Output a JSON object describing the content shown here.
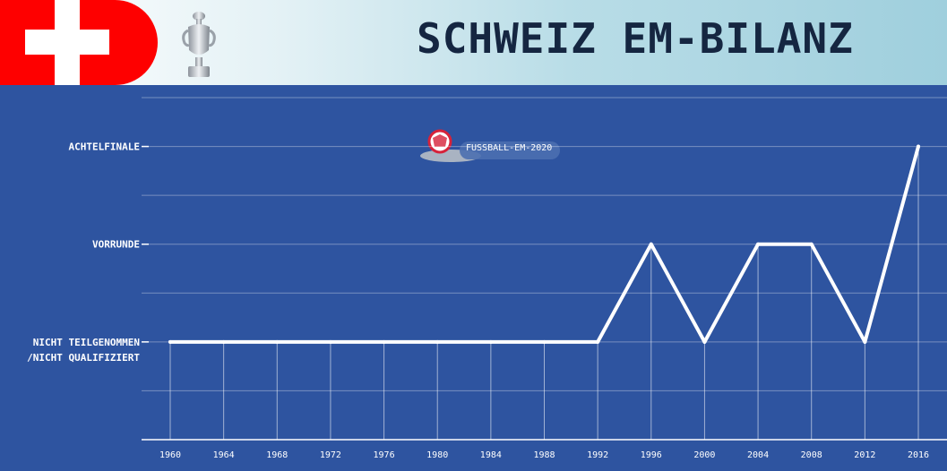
{
  "header": {
    "title": "SCHWEIZ EM-BILANZ",
    "flag_icon": "swiss-flag",
    "trophy_icon": "em-trophy",
    "colors": {
      "flag_red": "#fe0000",
      "title": "#152641",
      "background": "#2e54a0"
    }
  },
  "watermark": {
    "text": "FUSSBALL-EM-2020",
    "icon": "football-logo"
  },
  "chart_data": {
    "type": "line",
    "title": "SCHWEIZ EM-BILANZ",
    "xlabel": "",
    "ylabel": "",
    "categories": [
      "1960",
      "1964",
      "1968",
      "1972",
      "1976",
      "1980",
      "1984",
      "1988",
      "1992",
      "1996",
      "2000",
      "2004",
      "2008",
      "2012",
      "2016"
    ],
    "y_levels": [
      {
        "label": "NICHT TEILGENOMMEN",
        "label_line2": "/NICHT QUALIFIZIERT",
        "value": 0
      },
      {
        "label": "VORRUNDE",
        "value": 1
      },
      {
        "label": "ACHTELFINALE",
        "value": 2
      }
    ],
    "values": [
      0,
      0,
      0,
      0,
      0,
      0,
      0,
      0,
      0,
      1,
      0,
      1,
      1,
      0,
      2
    ],
    "ylim": [
      -1,
      2.5
    ],
    "grid": true,
    "line_color": "#ffffff"
  }
}
